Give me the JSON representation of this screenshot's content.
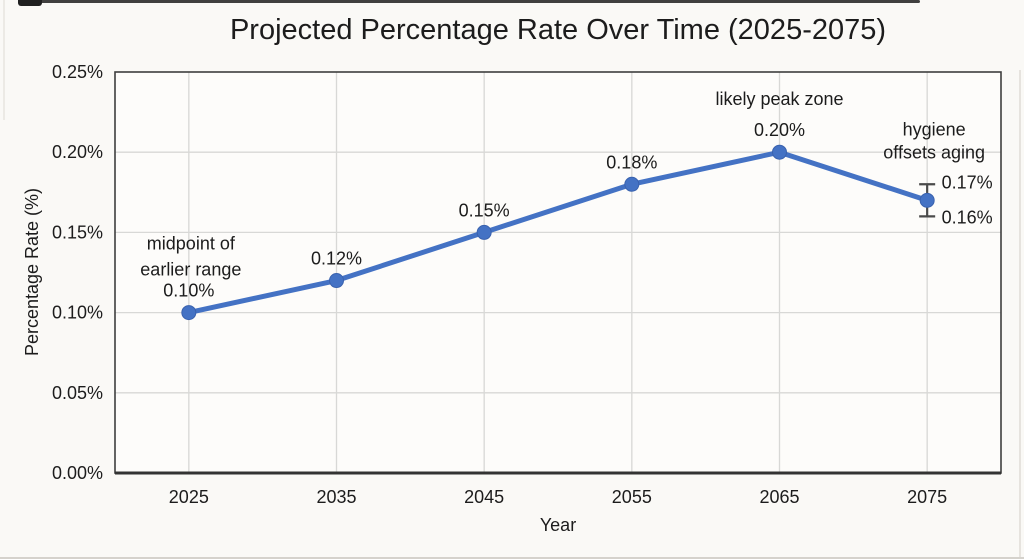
{
  "chart_data": {
    "type": "line",
    "title": "Projected Percentage Rate Over Time (2025-2075)",
    "xlabel": "Year",
    "ylabel": "Percentage Rate (%)",
    "categories": [
      "2025",
      "2035",
      "2045",
      "2055",
      "2065",
      "2075"
    ],
    "series": [
      {
        "name": "Projected Percentage Rate",
        "color": "#4472C4",
        "values": [
          0.1,
          0.12,
          0.15,
          0.18,
          0.2,
          0.17
        ],
        "point_labels": [
          "0.10%",
          "0.12%",
          "0.15%",
          "0.18%",
          "0.20%",
          ""
        ]
      }
    ],
    "error_bar": {
      "category": "2075",
      "value": 0.17,
      "upper": 0.18,
      "lower": 0.16,
      "upper_label": "0.17%",
      "lower_label": "0.16%"
    },
    "annotations": [
      {
        "category": "2025",
        "lines": [
          "midpoint of",
          "earlier range"
        ]
      },
      {
        "category": "2065",
        "lines": [
          "likely peak zone"
        ]
      },
      {
        "category": "2075",
        "lines": [
          "hygiene",
          "offsets aging"
        ]
      }
    ],
    "y_axis": {
      "min": 0,
      "max": 0.25,
      "tick_step": 0.05,
      "ticks": [
        {
          "value": 0.25,
          "label": "0.25%"
        },
        {
          "value": 0.2,
          "label": "0.20%"
        },
        {
          "value": 0.15,
          "label": "0.15%"
        },
        {
          "value": 0.1,
          "label": "0.10%"
        },
        {
          "value": 0.05,
          "label": "0.05%"
        },
        {
          "value": 0.0,
          "label": "0.00%"
        }
      ]
    },
    "grid": true,
    "legend": "none",
    "colors": {
      "line": "#4472C4",
      "gridline": "#d8d8d6",
      "plot_border": "#3e3e3e",
      "error_bar": "#4a4a4a",
      "text": "#1c1c1c"
    }
  }
}
